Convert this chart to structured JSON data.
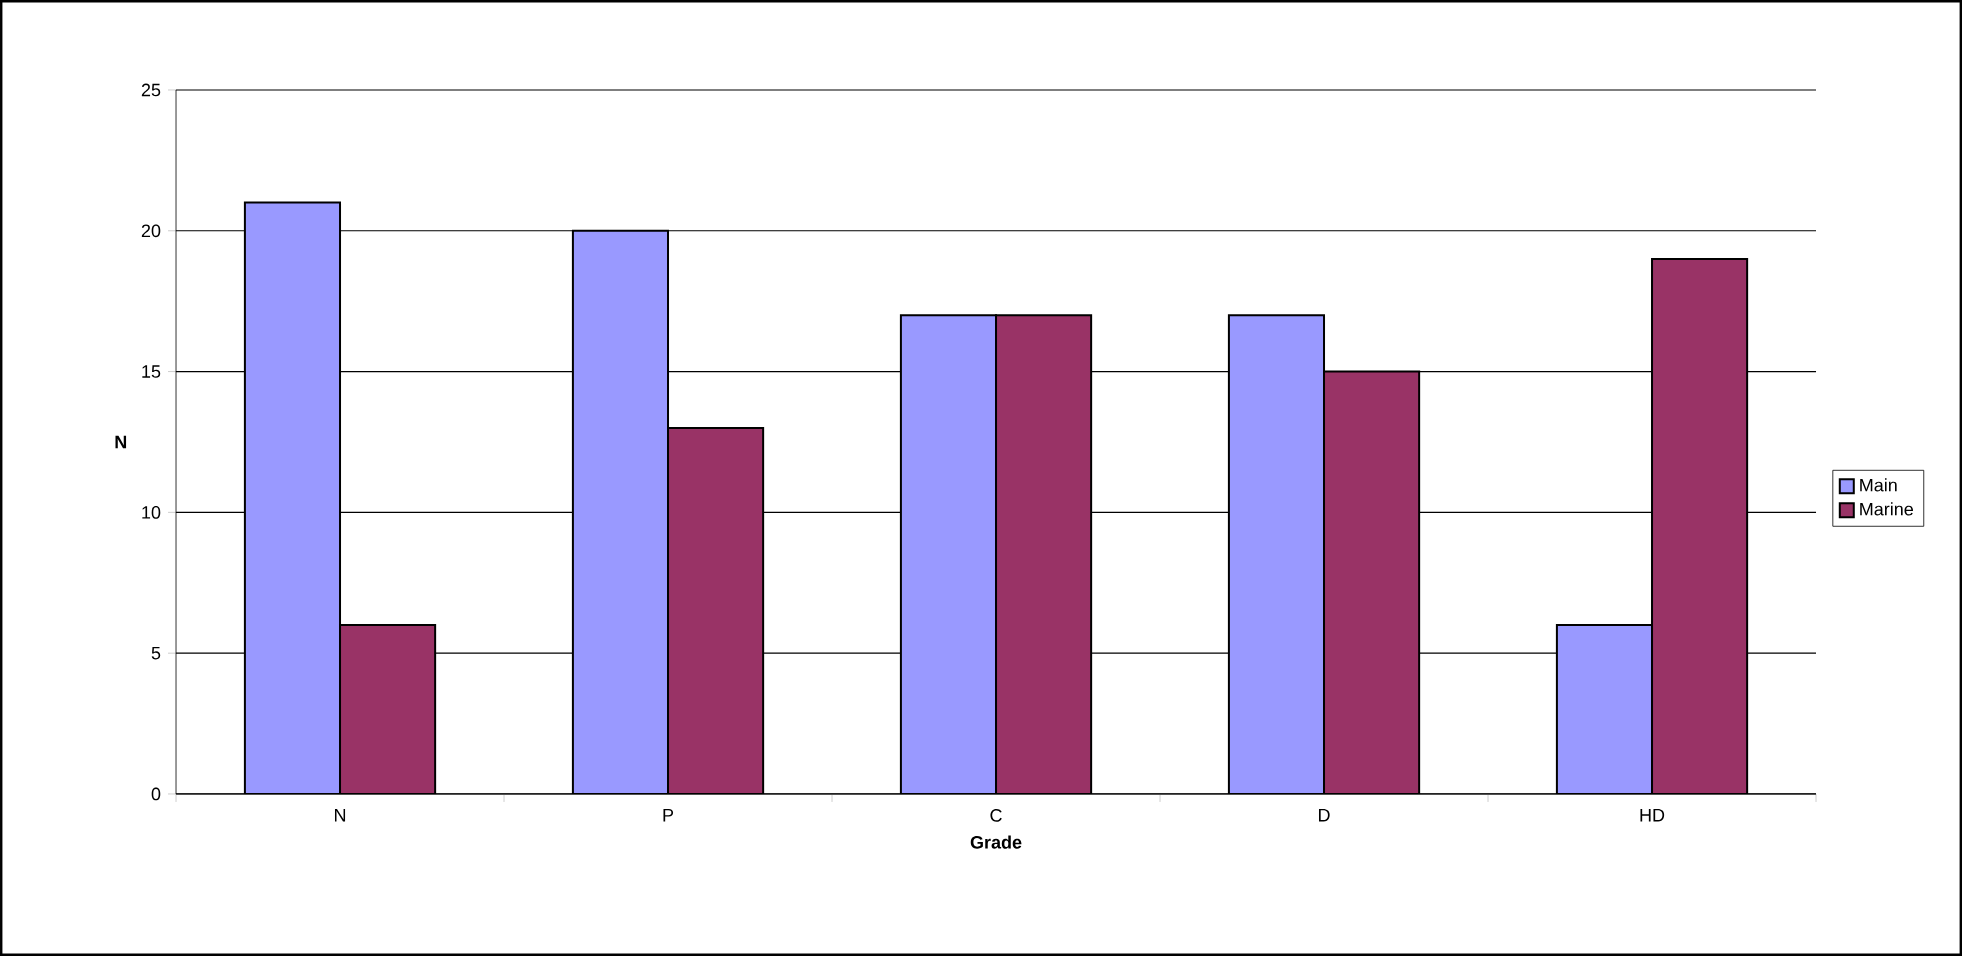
{
  "chart_data": {
    "type": "bar",
    "xlabel": "Grade",
    "ylabel": "N",
    "categories": [
      "N",
      "P",
      "C",
      "D",
      "HD"
    ],
    "series": [
      {
        "name": "Main",
        "color": "#9999ff",
        "values": [
          21,
          20,
          17,
          17,
          6
        ]
      },
      {
        "name": "Marine",
        "color": "#993366",
        "values": [
          6,
          13,
          17,
          15,
          19
        ]
      }
    ],
    "ylim": [
      0,
      25
    ],
    "yticks": [
      0,
      5,
      10,
      15,
      20,
      25
    ],
    "grid": "y",
    "legend": "right"
  }
}
